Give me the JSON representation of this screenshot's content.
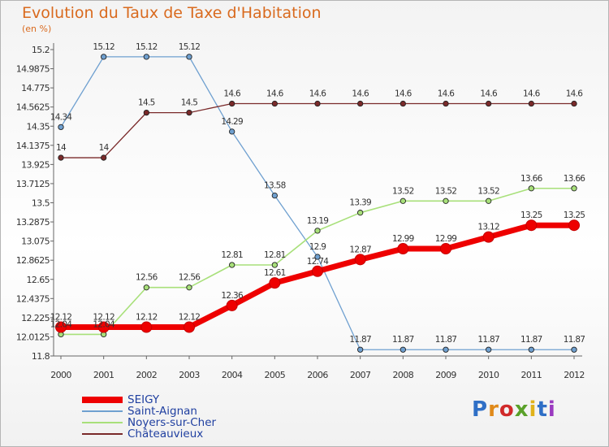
{
  "header": {
    "title": "Evolution du Taux de Taxe d'Habitation",
    "subtitle": "(en %)"
  },
  "logo": {
    "text": "Proxiti",
    "colors": [
      "#2f6fc6",
      "#e08a1a",
      "#d12a2a",
      "#5aa12a",
      "#e0b21a",
      "#2f6fc6",
      "#9a3ac0"
    ]
  },
  "chart_data": {
    "type": "line",
    "title": "Evolution du Taux de Taxe d'Habitation",
    "ylabel": "(en %)",
    "xlabel": "",
    "x": [
      "2000",
      "2001",
      "2002",
      "2003",
      "2004",
      "2005",
      "2006",
      "2007",
      "2008",
      "2009",
      "2010",
      "2011",
      "2012"
    ],
    "ylim": [
      11.8,
      15.2
    ],
    "yticks": [
      "11.8",
      "12.0125",
      "12.225",
      "12.4375",
      "12.65",
      "12.8625",
      "13.075",
      "13.2875",
      "13.5",
      "13.7125",
      "13.925",
      "14.1375",
      "14.35",
      "14.5625",
      "14.775",
      "14.9875",
      "15.2"
    ],
    "grid": false,
    "legend_position": "bottom-left",
    "series": [
      {
        "name": "SEIGY",
        "color": "#ee0000",
        "width": 7,
        "marker": 6.5,
        "values": [
          12.12,
          12.12,
          12.12,
          12.12,
          12.36,
          12.61,
          12.74,
          12.87,
          12.99,
          12.99,
          13.12,
          13.25,
          13.25
        ],
        "labels": [
          "12.12",
          "12.12",
          "12.12",
          "12.12",
          "12.36",
          "12.61",
          "12.74",
          "12.87",
          "12.99",
          "12.99",
          "13.12",
          "13.25",
          "13.25"
        ]
      },
      {
        "name": "Saint-Aignan",
        "color": "#6fa0d0",
        "width": 1.3,
        "marker": 3.2,
        "values": [
          14.34,
          15.12,
          15.12,
          15.12,
          14.29,
          13.58,
          12.9,
          11.87,
          11.87,
          11.87,
          11.87,
          11.87,
          11.87
        ],
        "labels": [
          "14.34",
          "15.12",
          "15.12",
          "15.12",
          "14.29",
          "13.58",
          "12.9",
          "11.87",
          "11.87",
          "11.87",
          "11.87",
          "11.87",
          "11.87"
        ]
      },
      {
        "name": "Noyers-sur-Cher",
        "color": "#a8e07a",
        "width": 1.6,
        "marker": 3.2,
        "values": [
          12.04,
          12.04,
          12.56,
          12.56,
          12.81,
          12.81,
          13.19,
          13.39,
          13.52,
          13.52,
          13.52,
          13.66,
          13.66
        ],
        "labels": [
          "12.04",
          "12.04",
          "12.56",
          "12.56",
          "12.81",
          "12.81",
          "13.19",
          "13.39",
          "13.52",
          "13.52",
          "13.52",
          "13.66",
          "13.66"
        ]
      },
      {
        "name": "Châteauvieux",
        "color": "#7a2a2a",
        "width": 1.3,
        "marker": 3.2,
        "values": [
          14,
          14,
          14.5,
          14.5,
          14.6,
          14.6,
          14.6,
          14.6,
          14.6,
          14.6,
          14.6,
          14.6,
          14.6
        ],
        "labels": [
          "14",
          "14",
          "14.5",
          "14.5",
          "14.6",
          "14.6",
          "14.6",
          "14.6",
          "14.6",
          "14.6",
          "14.6",
          "14.6",
          "14.6"
        ]
      }
    ]
  }
}
